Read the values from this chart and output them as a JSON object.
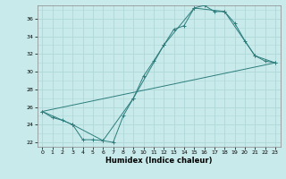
{
  "title": "",
  "xlabel": "Humidex (Indice chaleur)",
  "bg_color": "#c8eaea",
  "line_color": "#2d7d7d",
  "grid_color": "#b0d8d8",
  "xlim": [
    -0.5,
    23.5
  ],
  "ylim": [
    21.5,
    37.5
  ],
  "xticks": [
    0,
    1,
    2,
    3,
    4,
    5,
    6,
    7,
    8,
    9,
    10,
    11,
    12,
    13,
    14,
    15,
    16,
    17,
    18,
    19,
    20,
    21,
    22,
    23
  ],
  "yticks": [
    22,
    24,
    26,
    28,
    30,
    32,
    34,
    36
  ],
  "series1_x": [
    0,
    1,
    2,
    3,
    4,
    5,
    6,
    7,
    8,
    9,
    10,
    11,
    12,
    13,
    14,
    15,
    16,
    17,
    18,
    19,
    20,
    21,
    22,
    23
  ],
  "series1_y": [
    25.5,
    24.8,
    24.5,
    24.0,
    22.3,
    22.3,
    22.2,
    22.0,
    25.0,
    27.0,
    29.5,
    31.2,
    33.0,
    34.8,
    35.2,
    37.2,
    37.5,
    36.8,
    36.8,
    35.5,
    33.5,
    31.8,
    31.2,
    31.0
  ],
  "series2_x": [
    0,
    3,
    6,
    9,
    12,
    15,
    18,
    21,
    23
  ],
  "series2_y": [
    25.5,
    24.0,
    22.2,
    27.0,
    33.0,
    37.2,
    36.8,
    31.8,
    31.0
  ],
  "series3_x": [
    0,
    23
  ],
  "series3_y": [
    25.5,
    31.0
  ]
}
